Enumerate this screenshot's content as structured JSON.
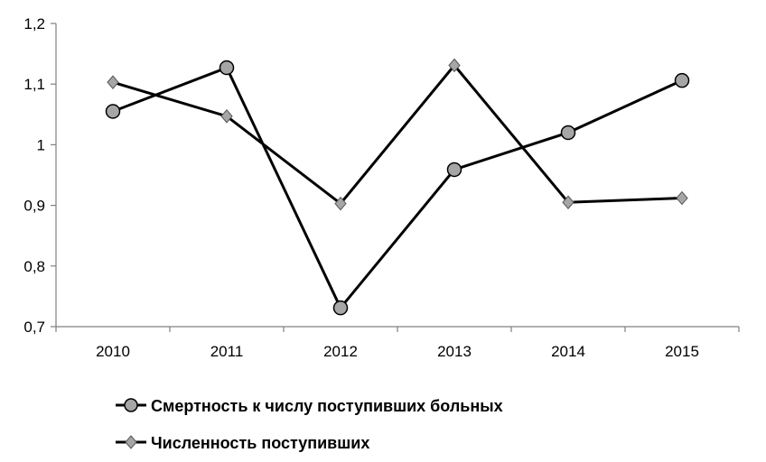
{
  "chart_data": {
    "type": "line",
    "categories": [
      "2010",
      "2011",
      "2012",
      "2013",
      "2014",
      "2015"
    ],
    "series": [
      {
        "name": "Смертность к числу поступивших больных",
        "marker": "circle",
        "values": [
          1.055,
          1.127,
          0.731,
          0.959,
          1.02,
          1.106
        ]
      },
      {
        "name": "Численность поступивших",
        "marker": "diamond",
        "values": [
          1.103,
          1.047,
          0.903,
          1.131,
          0.905,
          0.912
        ]
      }
    ],
    "yticks": [
      "0,7",
      "0,8",
      "0,9",
      "1",
      "1,1",
      "1,2"
    ],
    "ylim": [
      0.7,
      1.2
    ],
    "grid": false,
    "legend_position": "bottom-left",
    "colors": {
      "line": "#000000",
      "marker_fill": "#a6a6a6",
      "axis": "#808080"
    }
  }
}
